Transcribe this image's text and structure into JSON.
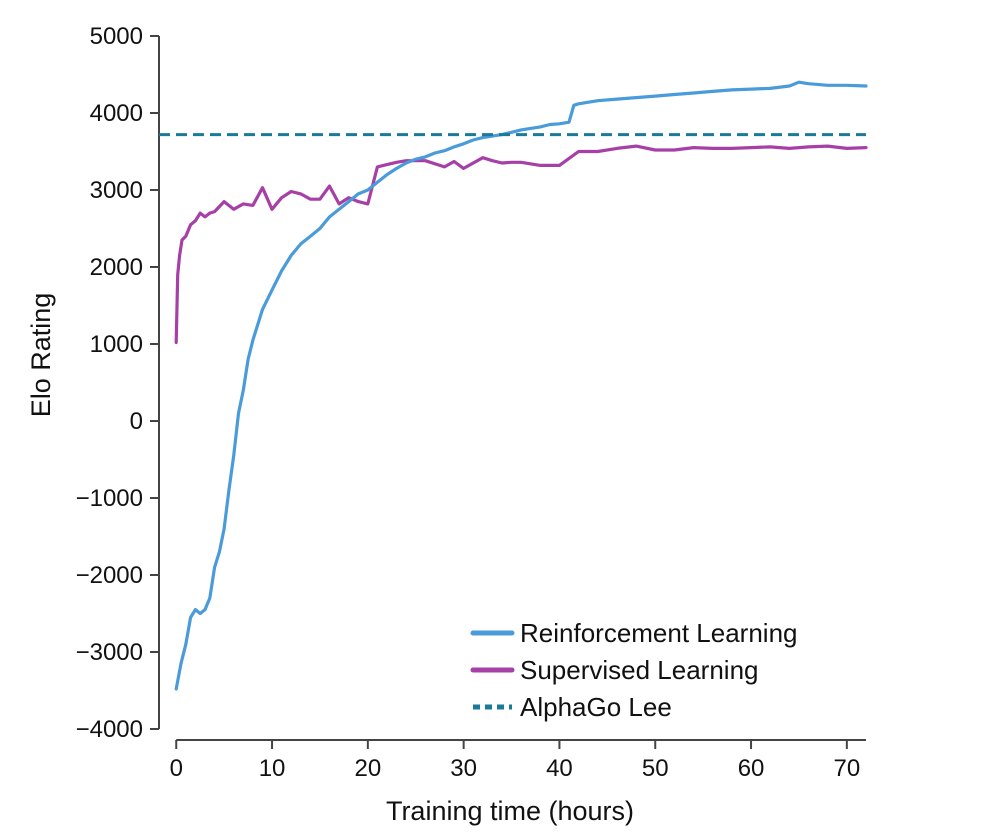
{
  "chart_data": {
    "type": "line",
    "xlabel": "Training time (hours)",
    "ylabel": "Elo Rating",
    "xlim": [
      -1.8,
      72
    ],
    "ylim": [
      -4000,
      5000
    ],
    "xticks": [
      0,
      10,
      20,
      30,
      40,
      50,
      60,
      70
    ],
    "yticks": [
      -4000,
      -3000,
      -2000,
      -1000,
      0,
      1000,
      2000,
      3000,
      4000,
      5000
    ],
    "xtick_labels": [
      "0",
      "10",
      "20",
      "30",
      "40",
      "50",
      "60",
      "70"
    ],
    "ytick_labels": [
      "−4000",
      "−3000",
      "−2000",
      "−1000",
      "0",
      "1000",
      "2000",
      "3000",
      "4000",
      "5000"
    ],
    "grid": false,
    "legend_position": "bottom-right",
    "series": [
      {
        "name": "Reinforcement Learning",
        "color": "#4a9bd9",
        "style": "solid",
        "x": [
          0,
          0.5,
          1,
          1.5,
          2,
          2.5,
          3,
          3.5,
          4,
          4.5,
          5,
          5.5,
          6,
          6.5,
          7,
          7.5,
          8,
          9,
          10,
          11,
          12,
          13,
          14,
          15,
          16,
          17,
          18,
          19,
          20,
          21,
          22,
          23,
          24,
          25,
          26,
          27,
          28,
          29,
          30,
          31,
          32,
          33,
          34,
          35,
          36,
          37,
          38,
          39,
          40,
          41,
          41.5,
          42,
          44,
          46,
          48,
          50,
          52,
          54,
          56,
          58,
          60,
          62,
          64,
          65,
          66,
          68,
          70,
          72
        ],
        "y": [
          -3480,
          -3150,
          -2900,
          -2550,
          -2450,
          -2500,
          -2450,
          -2300,
          -1900,
          -1700,
          -1400,
          -900,
          -450,
          100,
          400,
          800,
          1050,
          1450,
          1700,
          1950,
          2150,
          2300,
          2400,
          2500,
          2650,
          2750,
          2850,
          2950,
          3000,
          3100,
          3200,
          3280,
          3350,
          3400,
          3430,
          3480,
          3510,
          3560,
          3600,
          3650,
          3680,
          3700,
          3720,
          3750,
          3780,
          3800,
          3820,
          3850,
          3860,
          3880,
          4100,
          4120,
          4160,
          4180,
          4200,
          4220,
          4240,
          4260,
          4280,
          4300,
          4310,
          4320,
          4350,
          4400,
          4380,
          4360,
          4360,
          4350
        ]
      },
      {
        "name": "Supervised Learning",
        "color": "#a640a6",
        "style": "solid",
        "x": [
          0,
          0.15,
          0.35,
          0.6,
          1,
          1.5,
          2,
          2.5,
          3,
          3.5,
          4,
          5,
          6,
          7,
          8,
          9,
          10,
          11,
          12,
          13,
          14,
          15,
          16,
          17,
          18,
          19,
          20,
          21,
          22,
          23,
          24,
          26,
          28,
          29,
          30,
          32,
          33,
          34,
          35,
          36,
          38,
          40,
          42,
          44,
          46,
          48,
          50,
          52,
          54,
          56,
          58,
          60,
          62,
          64,
          66,
          68,
          70,
          72
        ],
        "y": [
          1020,
          1900,
          2150,
          2350,
          2400,
          2550,
          2600,
          2700,
          2650,
          2700,
          2720,
          2850,
          2750,
          2820,
          2800,
          3030,
          2750,
          2900,
          2980,
          2950,
          2880,
          2880,
          3050,
          2820,
          2900,
          2850,
          2820,
          3300,
          3330,
          3360,
          3380,
          3380,
          3300,
          3370,
          3280,
          3420,
          3380,
          3350,
          3360,
          3360,
          3320,
          3320,
          3500,
          3500,
          3540,
          3570,
          3520,
          3520,
          3550,
          3540,
          3540,
          3550,
          3560,
          3540,
          3560,
          3570,
          3540,
          3550
        ]
      },
      {
        "name": "AlphaGo Lee",
        "color": "#1a7a9a",
        "style": "dashed",
        "x": [
          -1.8,
          72
        ],
        "y": [
          3720,
          3720
        ]
      }
    ]
  }
}
